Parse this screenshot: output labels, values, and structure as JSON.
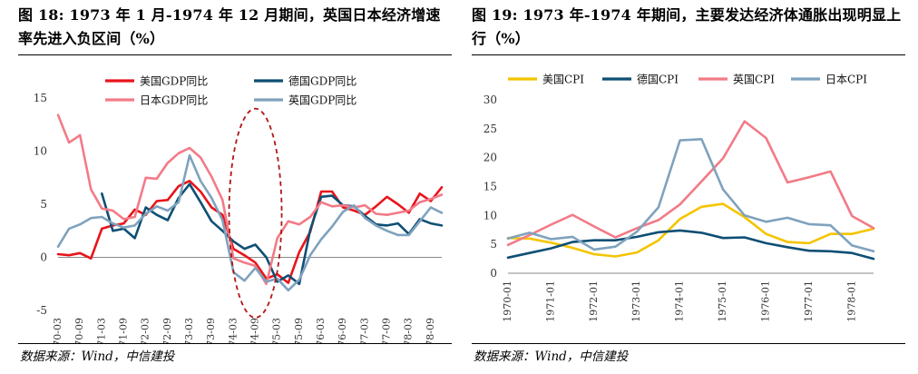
{
  "left_panel": {
    "title": "图 18: 1973 年  1 月-1974 年  12 月期间，英国日本经济增速率先进入负区间（%）",
    "source": "数据来源：Wind，中信建投"
  },
  "right_panel": {
    "title": "图 19: 1973 年-1974 年期间，主要发达经济体通胀出现明显上行（%）",
    "source": "数据来源：Wind，中信建投"
  },
  "chart_data": [
    {
      "type": "line",
      "ylim": [
        -5,
        15
      ],
      "yticks": [
        -5,
        0,
        5,
        10,
        15
      ],
      "x": [
        "1970-03",
        "1970-06",
        "1970-09",
        "1970-12",
        "1971-03",
        "1971-06",
        "1971-09",
        "1971-12",
        "1972-03",
        "1972-06",
        "1972-09",
        "1972-12",
        "1973-03",
        "1973-06",
        "1973-09",
        "1973-12",
        "1974-03",
        "1974-06",
        "1974-09",
        "1974-12",
        "1975-03",
        "1975-06",
        "1975-09",
        "1975-12",
        "1976-03",
        "1976-06",
        "1976-09",
        "1976-12",
        "1977-03",
        "1977-06",
        "1977-09",
        "1977-12",
        "1978-03",
        "1978-06",
        "1978-09",
        "1978-12"
      ],
      "xtick_labels": [
        "1970-03",
        "1970-09",
        "1971-03",
        "1971-09",
        "1972-03",
        "1972-09",
        "1973-03",
        "1973-09",
        "1974-03",
        "1974-09",
        "1975-03",
        "1975-09",
        "1976-03",
        "1976-09",
        "1977-03",
        "1977-09",
        "1978-03",
        "1978-09"
      ],
      "legend_position": "top",
      "series": [
        {
          "name": "美国GDP同比",
          "color": "#e8141b",
          "values": [
            0.3,
            0.2,
            0.4,
            -0.1,
            2.7,
            3.0,
            3.2,
            4.5,
            4.0,
            5.3,
            5.4,
            6.7,
            7.2,
            6.2,
            4.7,
            4.0,
            0.8,
            0.2,
            -0.5,
            -2.0,
            -1.6,
            -2.4,
            0.5,
            2.4,
            6.2,
            6.2,
            4.7,
            4.4,
            4.0,
            4.8,
            5.7,
            5.0,
            4.2,
            6.0,
            5.3,
            6.6
          ]
        },
        {
          "name": "德国GDP同比",
          "color": "#0e4f74",
          "values": [
            null,
            null,
            null,
            null,
            6.0,
            2.5,
            2.7,
            1.8,
            4.7,
            4.0,
            3.5,
            5.6,
            6.9,
            5.2,
            3.4,
            2.5,
            1.5,
            0.8,
            1.2,
            0.0,
            -2.3,
            -1.7,
            -2.5,
            2.6,
            5.7,
            5.8,
            4.9,
            4.8,
            3.9,
            3.1,
            3.0,
            3.2,
            2.2,
            3.6,
            3.2,
            3.0
          ]
        },
        {
          "name": "日本GDP同比",
          "color": "#f27b87",
          "values": [
            13.4,
            10.8,
            11.5,
            6.4,
            4.6,
            4.4,
            3.6,
            3.8,
            7.5,
            7.4,
            8.9,
            9.8,
            10.3,
            9.4,
            7.6,
            5.4,
            -0.1,
            -0.5,
            -0.8,
            -2.5,
            1.8,
            3.4,
            3.1,
            3.8,
            5.2,
            4.8,
            4.9,
            4.7,
            4.9,
            4.1,
            4.0,
            4.2,
            4.4,
            5.2,
            5.5,
            5.9
          ]
        },
        {
          "name": "英国GDP同比",
          "color": "#7fa2be",
          "values": [
            1.0,
            2.7,
            3.1,
            3.7,
            3.8,
            3.2,
            2.8,
            3.0,
            4.1,
            4.8,
            4.4,
            5.2,
            9.6,
            7.2,
            5.6,
            3.5,
            -1.4,
            -2.2,
            -1.0,
            -2.3,
            -2.0,
            -3.1,
            -2.1,
            0.2,
            1.7,
            2.9,
            4.3,
            4.9,
            3.7,
            3.0,
            2.5,
            2.1,
            2.1,
            3.4,
            4.7,
            4.2
          ]
        }
      ],
      "annotation": "dashed-ellipse-highlight"
    },
    {
      "type": "line",
      "ylim": [
        0,
        30
      ],
      "yticks": [
        0,
        5,
        10,
        15,
        20,
        25,
        30
      ],
      "x": [
        "1970-01",
        "1970-07",
        "1971-01",
        "1971-07",
        "1972-01",
        "1972-07",
        "1973-01",
        "1973-07",
        "1974-01",
        "1974-07",
        "1975-01",
        "1975-07",
        "1976-01",
        "1976-07",
        "1977-01",
        "1977-07",
        "1978-01",
        "1978-07"
      ],
      "xtick_labels": [
        "1970-01",
        "1971-01",
        "1972-01",
        "1973-01",
        "1974-01",
        "1975-01",
        "1976-01",
        "1977-01",
        "1978-01"
      ],
      "legend_position": "top",
      "series": [
        {
          "name": "美国CPI",
          "color": "#f5c400",
          "values": [
            6.1,
            6.0,
            5.3,
            4.4,
            3.3,
            2.9,
            3.6,
            5.7,
            9.4,
            11.5,
            12.0,
            9.7,
            6.8,
            5.4,
            5.2,
            6.8,
            6.8,
            7.7
          ]
        },
        {
          "name": "德国CPI",
          "color": "#0e4f74",
          "values": [
            2.7,
            3.5,
            4.3,
            5.4,
            5.7,
            5.7,
            6.3,
            7.1,
            7.4,
            7.0,
            6.1,
            6.2,
            5.2,
            4.5,
            3.9,
            3.8,
            3.5,
            2.5
          ]
        },
        {
          "name": "英国CPI",
          "color": "#f27b87",
          "values": [
            4.9,
            6.6,
            8.4,
            10.1,
            8.1,
            6.2,
            7.8,
            9.2,
            11.9,
            15.9,
            19.9,
            26.3,
            23.4,
            15.7,
            16.6,
            17.6,
            9.9,
            7.8
          ]
        },
        {
          "name": "日本CPI",
          "color": "#7fa2be",
          "values": [
            6.0,
            7.0,
            5.9,
            6.3,
            4.1,
            4.6,
            7.2,
            11.4,
            23.0,
            23.2,
            14.5,
            10.0,
            8.9,
            9.6,
            8.5,
            8.3,
            4.8,
            3.8
          ]
        }
      ]
    }
  ]
}
